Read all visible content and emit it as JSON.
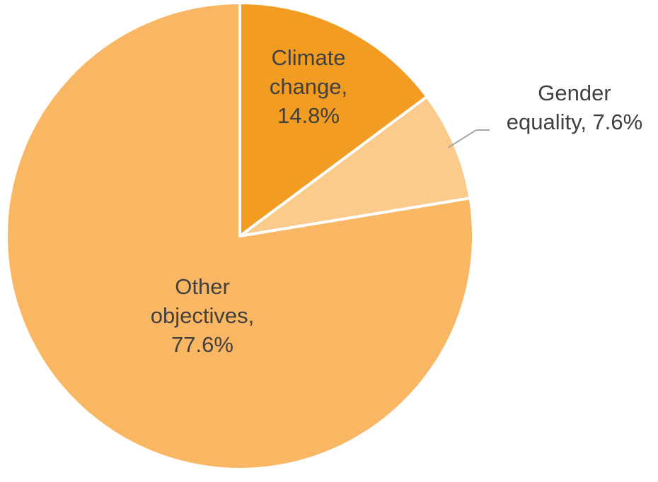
{
  "chart_data": {
    "type": "pie",
    "slices": [
      {
        "label": "Climate change",
        "value": 14.8,
        "color": "#F29D22",
        "text_lines": [
          "Climate",
          "change,",
          "14.8%"
        ]
      },
      {
        "label": "Gender equality",
        "value": 7.6,
        "color": "#FBCB8C",
        "text_lines": [
          "Gender",
          "equality, 7.6%"
        ]
      },
      {
        "label": "Other objectives",
        "value": 77.6,
        "color": "#F9B764",
        "text_lines": [
          "Other",
          "objectives,",
          "77.6%"
        ]
      }
    ],
    "start_angle": "12 o'clock",
    "direction": "clockwise",
    "leader_line_color": "#A6A6A6",
    "label_color": "#404040",
    "slice_border_color": "#FFFFFF"
  }
}
